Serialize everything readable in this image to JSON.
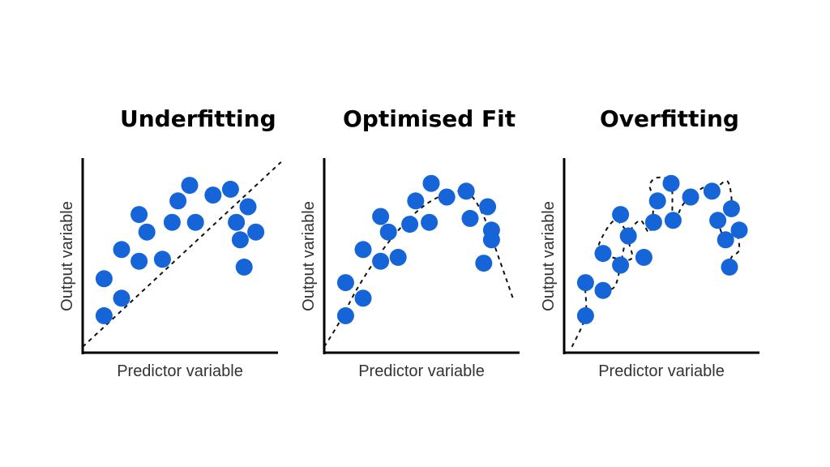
{
  "point_color": "#1565d8",
  "chart_data": [
    {
      "type": "scatter",
      "title": "Underfitting",
      "xlabel": "Predictor variable",
      "ylabel": "Output variable",
      "xlim": [
        0,
        10
      ],
      "ylim": [
        0,
        10
      ],
      "grid": false,
      "points": [
        {
          "x": 1.1,
          "y": 1.9
        },
        {
          "x": 1.1,
          "y": 3.8
        },
        {
          "x": 2.0,
          "y": 2.8
        },
        {
          "x": 2.0,
          "y": 5.3
        },
        {
          "x": 2.9,
          "y": 4.7
        },
        {
          "x": 2.9,
          "y": 7.1
        },
        {
          "x": 3.3,
          "y": 6.2
        },
        {
          "x": 4.1,
          "y": 4.8
        },
        {
          "x": 4.6,
          "y": 6.7
        },
        {
          "x": 4.9,
          "y": 7.8
        },
        {
          "x": 5.5,
          "y": 8.6
        },
        {
          "x": 5.8,
          "y": 6.7
        },
        {
          "x": 6.7,
          "y": 8.1
        },
        {
          "x": 7.6,
          "y": 8.4
        },
        {
          "x": 7.9,
          "y": 6.7
        },
        {
          "x": 8.5,
          "y": 7.5
        },
        {
          "x": 8.1,
          "y": 5.8
        },
        {
          "x": 8.9,
          "y": 6.2
        },
        {
          "x": 8.3,
          "y": 4.4
        }
      ],
      "fit": {
        "style": "dashed",
        "x": [
          0,
          10.2
        ],
        "y": [
          0.3,
          9.8
        ]
      }
    },
    {
      "type": "scatter",
      "title": "Optimised Fit",
      "xlabel": "Predictor variable",
      "ylabel": "Output variable",
      "xlim": [
        0,
        10
      ],
      "ylim": [
        0,
        10
      ],
      "grid": false,
      "points": [
        {
          "x": 1.1,
          "y": 1.9
        },
        {
          "x": 1.1,
          "y": 3.6
        },
        {
          "x": 2.0,
          "y": 2.8
        },
        {
          "x": 2.0,
          "y": 5.3
        },
        {
          "x": 2.9,
          "y": 4.7
        },
        {
          "x": 2.9,
          "y": 7.0
        },
        {
          "x": 3.3,
          "y": 6.2
        },
        {
          "x": 3.8,
          "y": 4.9
        },
        {
          "x": 4.4,
          "y": 6.6
        },
        {
          "x": 4.7,
          "y": 7.8
        },
        {
          "x": 5.4,
          "y": 6.7
        },
        {
          "x": 5.5,
          "y": 8.7
        },
        {
          "x": 6.3,
          "y": 8.0
        },
        {
          "x": 7.3,
          "y": 8.3
        },
        {
          "x": 7.5,
          "y": 6.9
        },
        {
          "x": 8.4,
          "y": 7.5
        },
        {
          "x": 8.6,
          "y": 6.3
        },
        {
          "x": 8.6,
          "y": 5.8
        },
        {
          "x": 8.2,
          "y": 4.6
        }
      ],
      "fit": {
        "style": "dashed",
        "x": [
          0,
          0.8,
          1.7,
          2.8,
          4.0,
          5.2,
          6.4,
          7.4,
          8.2,
          9.0,
          9.7
        ],
        "y": [
          0.3,
          1.6,
          3.3,
          5.0,
          6.5,
          7.6,
          8.2,
          8.2,
          7.0,
          4.8,
          2.8
        ]
      }
    },
    {
      "type": "scatter",
      "title": "Overfitting",
      "xlabel": "Predictor variable",
      "ylabel": "Output variable",
      "xlim": [
        0,
        10
      ],
      "ylim": [
        0,
        10
      ],
      "grid": false,
      "points": [
        {
          "x": 1.1,
          "y": 1.9
        },
        {
          "x": 1.1,
          "y": 3.6
        },
        {
          "x": 2.0,
          "y": 3.2
        },
        {
          "x": 2.0,
          "y": 5.1
        },
        {
          "x": 2.9,
          "y": 4.5
        },
        {
          "x": 2.9,
          "y": 7.1
        },
        {
          "x": 3.3,
          "y": 6.0
        },
        {
          "x": 4.1,
          "y": 4.9
        },
        {
          "x": 4.6,
          "y": 6.7
        },
        {
          "x": 4.8,
          "y": 7.8
        },
        {
          "x": 5.5,
          "y": 8.7
        },
        {
          "x": 5.6,
          "y": 6.8
        },
        {
          "x": 6.5,
          "y": 8.0
        },
        {
          "x": 7.6,
          "y": 8.3
        },
        {
          "x": 7.9,
          "y": 6.8
        },
        {
          "x": 8.6,
          "y": 7.4
        },
        {
          "x": 8.3,
          "y": 5.8
        },
        {
          "x": 9.0,
          "y": 6.3
        },
        {
          "x": 8.5,
          "y": 4.4
        }
      ],
      "fit": {
        "style": "dashed",
        "x": [
          0.4,
          1.1,
          1.1,
          1.6,
          2.0,
          2.6,
          2.9,
          3.1,
          3.3,
          2.6,
          1.8,
          2.0,
          2.9,
          3.5,
          3.3,
          3.9,
          4.4,
          4.6,
          4.4,
          4.8,
          5.5,
          5.6,
          6.1,
          6.5,
          7.2,
          7.6,
          8.4,
          8.6,
          8.1,
          7.9,
          8.3,
          8.8,
          9.0,
          8.6,
          8.5
        ],
        "y": [
          0.3,
          1.9,
          3.6,
          3.2,
          3.2,
          3.4,
          4.5,
          5.5,
          6.0,
          6.8,
          5.6,
          5.1,
          4.8,
          4.9,
          6.0,
          6.8,
          6.2,
          7.8,
          8.6,
          9.0,
          8.7,
          6.8,
          7.6,
          8.0,
          8.5,
          8.3,
          8.8,
          7.4,
          7.0,
          6.8,
          5.8,
          6.3,
          5.3,
          4.9,
          4.4
        ]
      }
    }
  ]
}
